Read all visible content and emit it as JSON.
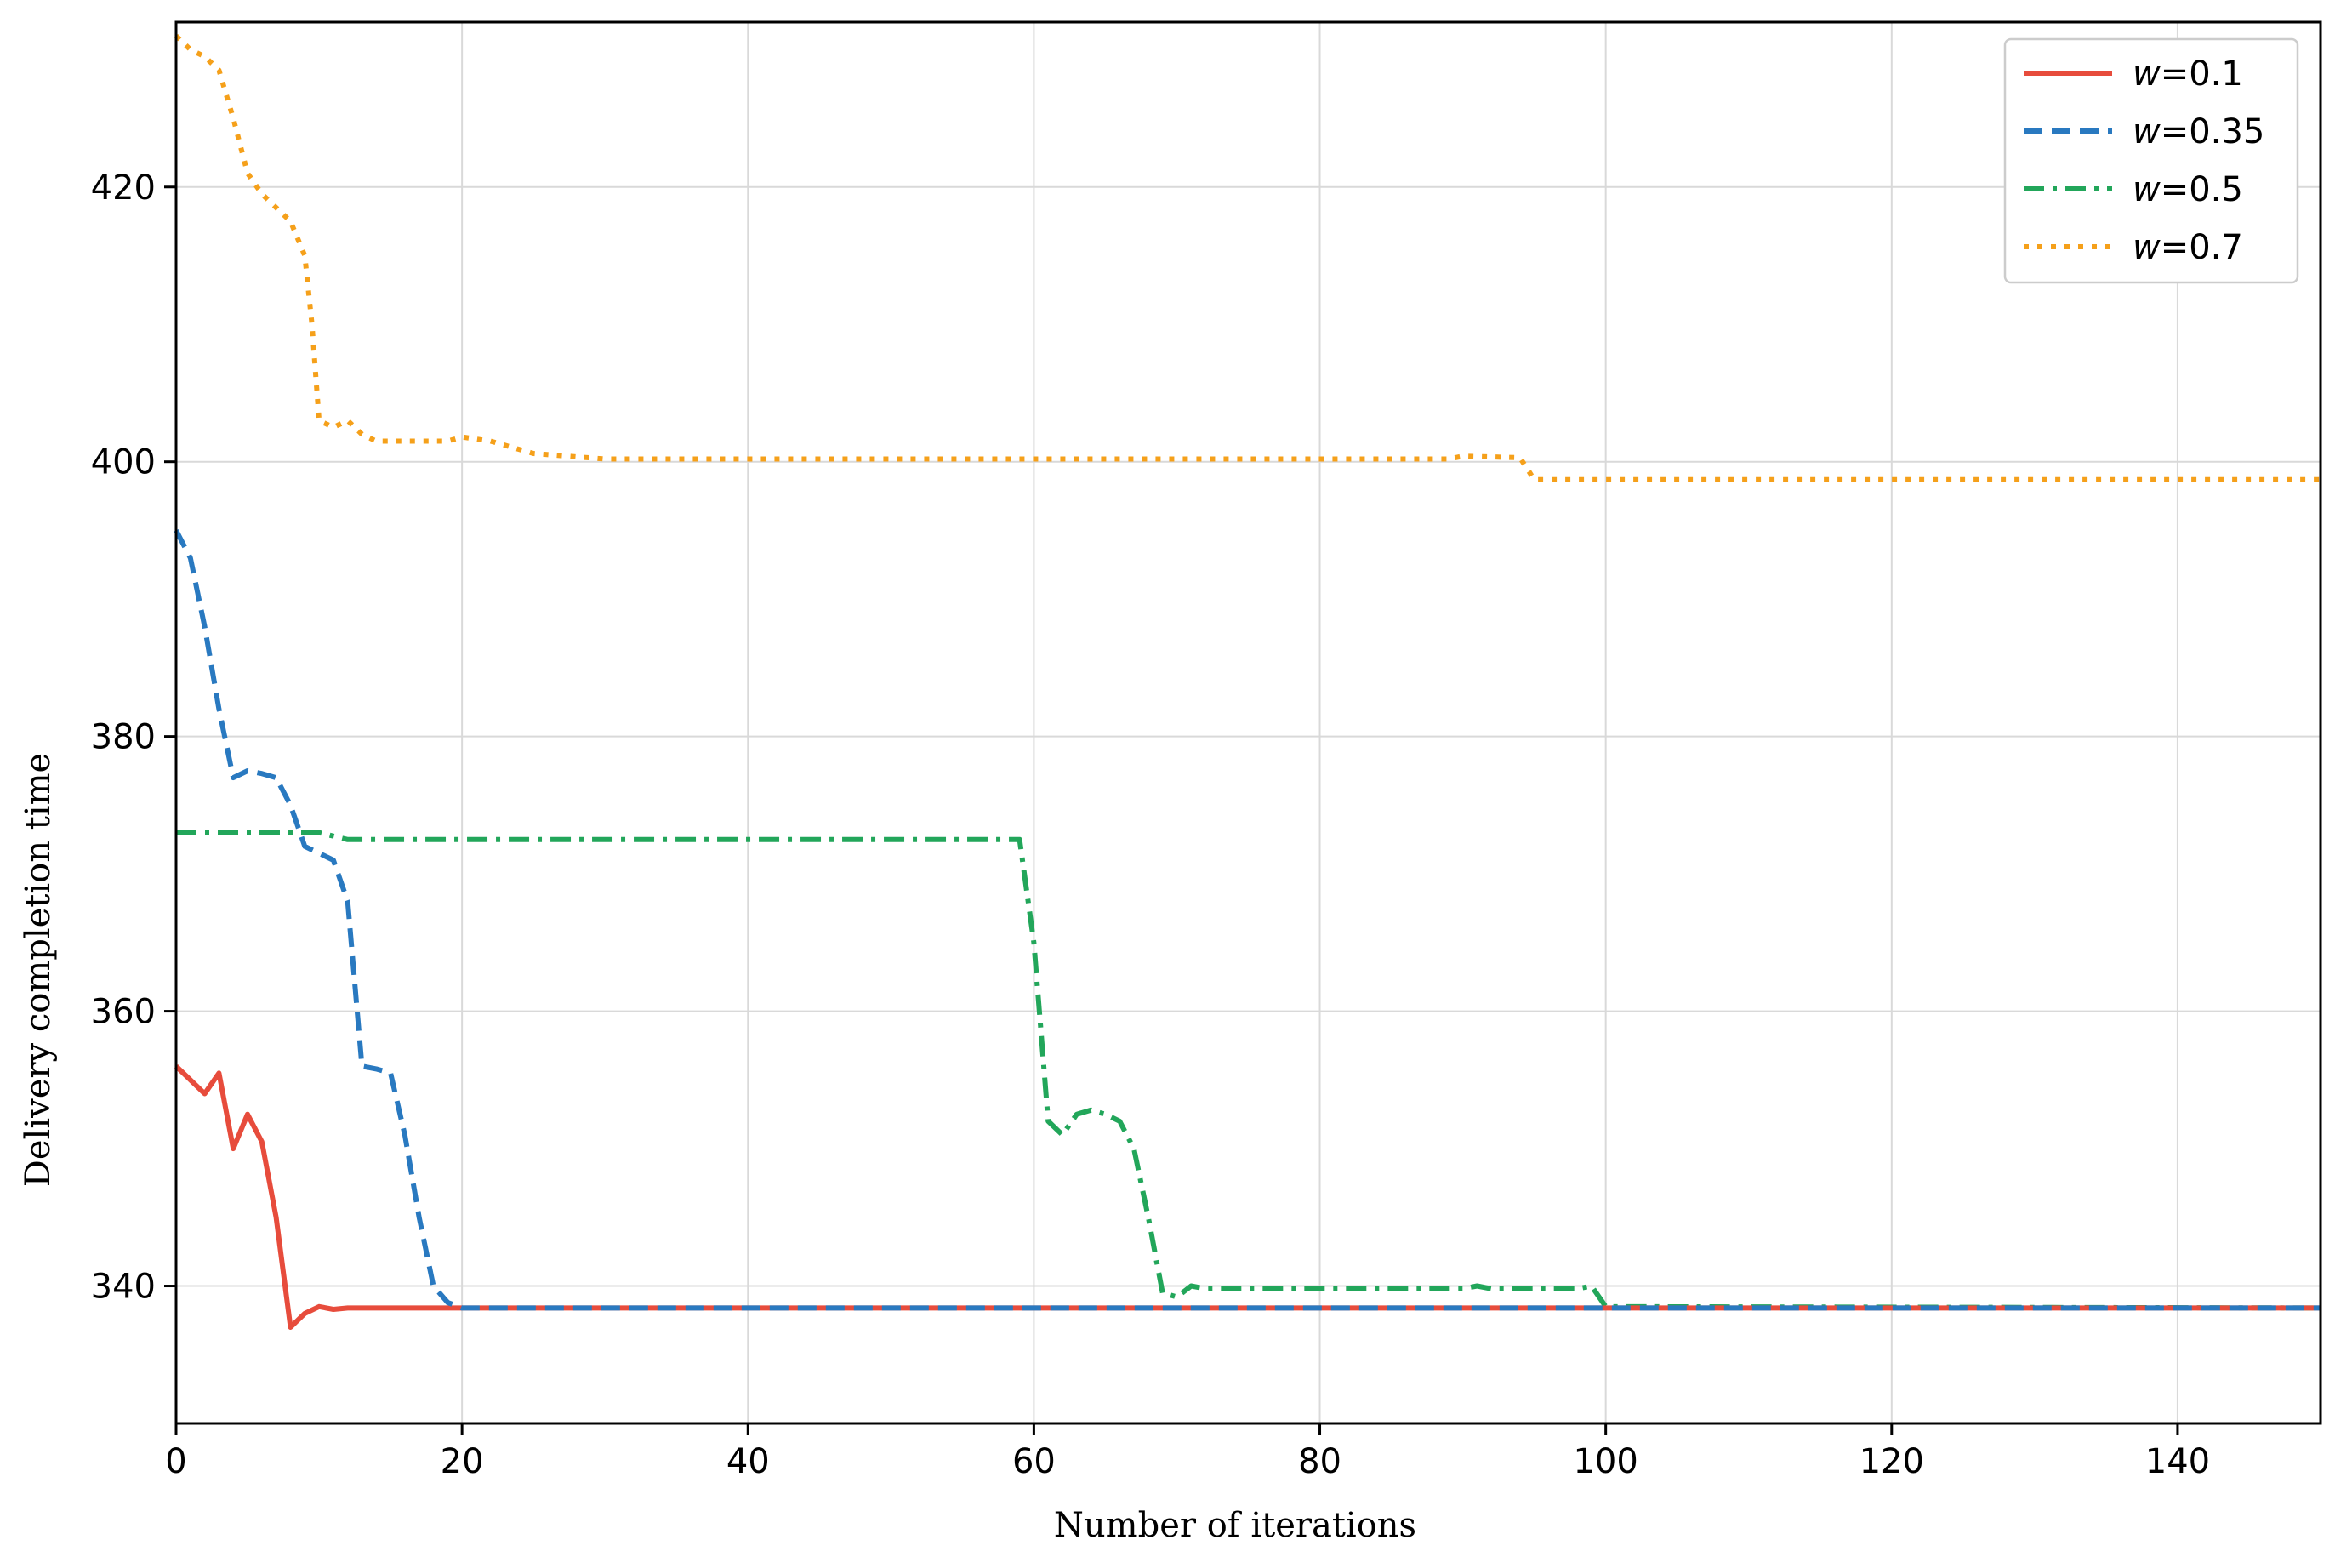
{
  "chart_data": {
    "type": "line",
    "title": "",
    "xlabel": "Number of iterations",
    "ylabel": "Delivery completion time",
    "xlim": [
      0,
      150
    ],
    "ylim": [
      330,
      432
    ],
    "x_ticks": [
      0,
      20,
      40,
      60,
      80,
      100,
      120,
      140
    ],
    "y_ticks": [
      340,
      360,
      380,
      400,
      420
    ],
    "grid": true,
    "legend_position": "top-right",
    "series": [
      {
        "name": "w=0.1",
        "name_var": "w",
        "name_value": "=0.1",
        "color": "#e74c3c",
        "style": "solid",
        "points": [
          [
            0,
            356
          ],
          [
            1,
            355
          ],
          [
            2,
            354
          ],
          [
            3,
            355.5
          ],
          [
            4,
            350
          ],
          [
            5,
            352.5
          ],
          [
            6,
            350.5
          ],
          [
            7,
            345
          ],
          [
            8,
            337
          ],
          [
            9,
            338
          ],
          [
            10,
            338.5
          ],
          [
            11,
            338.3
          ],
          [
            12,
            338.4
          ],
          [
            20,
            338.4
          ],
          [
            150,
            338.4
          ]
        ]
      },
      {
        "name": "w=0.35",
        "name_var": "w",
        "name_value": "=0.35",
        "color": "#2979c0",
        "style": "dashed",
        "points": [
          [
            0,
            395
          ],
          [
            1,
            393
          ],
          [
            2,
            388
          ],
          [
            3,
            382
          ],
          [
            4,
            377
          ],
          [
            5,
            377.5
          ],
          [
            6,
            377.3
          ],
          [
            7,
            377
          ],
          [
            8,
            375
          ],
          [
            9,
            372
          ],
          [
            10,
            371.5
          ],
          [
            11,
            371
          ],
          [
            12,
            368
          ],
          [
            13,
            356
          ],
          [
            14,
            355.8
          ],
          [
            15,
            355.5
          ],
          [
            16,
            351
          ],
          [
            17,
            345
          ],
          [
            18,
            340
          ],
          [
            19,
            338.8
          ],
          [
            20,
            338.4
          ],
          [
            150,
            338.4
          ]
        ]
      },
      {
        "name": "w=0.5",
        "name_var": "w",
        "name_value": "=0.5",
        "color": "#22a65a",
        "style": "dashdot",
        "points": [
          [
            0,
            373
          ],
          [
            5,
            373
          ],
          [
            10,
            373
          ],
          [
            12,
            372.5
          ],
          [
            20,
            372.5
          ],
          [
            59,
            372.5
          ],
          [
            60,
            365
          ],
          [
            61,
            352
          ],
          [
            62,
            351
          ],
          [
            63,
            352.5
          ],
          [
            64,
            352.8
          ],
          [
            65,
            352.5
          ],
          [
            66,
            352
          ],
          [
            67,
            350
          ],
          [
            68,
            345
          ],
          [
            69,
            339.5
          ],
          [
            70,
            339.2
          ],
          [
            71,
            340
          ],
          [
            72,
            339.8
          ],
          [
            90,
            339.8
          ],
          [
            91,
            340
          ],
          [
            92,
            339.8
          ],
          [
            98,
            339.8
          ],
          [
            99,
            340
          ],
          [
            100,
            338.5
          ],
          [
            150,
            338.4
          ]
        ]
      },
      {
        "name": "w=0.7",
        "name_var": "w",
        "name_value": "=0.7",
        "color": "#f5a01a",
        "style": "dotted",
        "points": [
          [
            0,
            431
          ],
          [
            1,
            430
          ],
          [
            2,
            429.5
          ],
          [
            3,
            428.5
          ],
          [
            4,
            425
          ],
          [
            5,
            421
          ],
          [
            6,
            419.5
          ],
          [
            7,
            418.5
          ],
          [
            8,
            417.5
          ],
          [
            9,
            415
          ],
          [
            9.5,
            410
          ],
          [
            10,
            403
          ],
          [
            11,
            402.5
          ],
          [
            12,
            403
          ],
          [
            13,
            402
          ],
          [
            14,
            401.5
          ],
          [
            19,
            401.5
          ],
          [
            20,
            401.8
          ],
          [
            22,
            401.5
          ],
          [
            25,
            400.6
          ],
          [
            30,
            400.2
          ],
          [
            59,
            400.2
          ],
          [
            89,
            400.2
          ],
          [
            90,
            400.4
          ],
          [
            94,
            400.3
          ],
          [
            95,
            398.7
          ],
          [
            150,
            398.7
          ]
        ]
      }
    ]
  }
}
